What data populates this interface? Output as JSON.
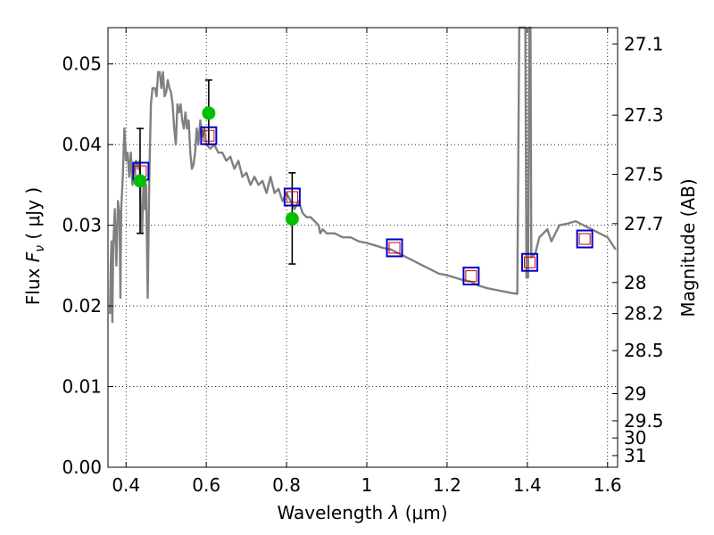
{
  "chart_data": {
    "type": "line",
    "xlabel": "Wavelength  λ (μm)",
    "xlabel_parts": {
      "text": "Wavelength  ",
      "symbol": "λ",
      "units": "(μm)"
    },
    "ylabel": "Flux  F_ν  ( μJy )",
    "ylabel_parts": {
      "text": "Flux  ",
      "symbol": "F",
      "subscript": "ν",
      "units": "( μJy )"
    },
    "ylabel_right": "Magnitude (AB)",
    "xlim": [
      0.355,
      1.625
    ],
    "ylim": [
      0.0,
      0.0545
    ],
    "x_ticks": [
      0.4,
      0.6,
      0.8,
      1.0,
      1.2,
      1.4,
      1.6
    ],
    "x_tick_labels": [
      "0.4",
      "0.6",
      "0.8",
      "1",
      "1.2",
      "1.4",
      "1.6"
    ],
    "y_ticks": [
      0.0,
      0.01,
      0.02,
      0.03,
      0.04,
      0.05
    ],
    "y_tick_labels": [
      "0.00",
      "0.01",
      "0.02",
      "0.03",
      "0.04",
      "0.05"
    ],
    "right_ticks": [
      {
        "label": "27.1",
        "mag": 27.1
      },
      {
        "label": "27.3",
        "mag": 27.3
      },
      {
        "label": "27.5",
        "mag": 27.5
      },
      {
        "label": "27.7",
        "mag": 27.7
      },
      {
        "label": "28",
        "mag": 28.0
      },
      {
        "label": "28.2",
        "mag": 28.2
      },
      {
        "label": "28.5",
        "mag": 28.5
      },
      {
        "label": "29",
        "mag": 29.0
      },
      {
        "label": "29.5",
        "mag": 29.5
      },
      {
        "label": "30",
        "mag": 30.0
      },
      {
        "label": "31",
        "mag": 31.0
      }
    ],
    "grid": true,
    "colors": {
      "spectrum": "#808080",
      "observed": "#00c000",
      "model_box": "#0000cc",
      "model_inner": "#cc0000",
      "errorbar": "#000000"
    },
    "spectrum": [
      [
        0.36,
        0.019
      ],
      [
        0.362,
        0.025
      ],
      [
        0.364,
        0.028
      ],
      [
        0.366,
        0.018
      ],
      [
        0.368,
        0.027
      ],
      [
        0.372,
        0.032
      ],
      [
        0.376,
        0.025
      ],
      [
        0.38,
        0.033
      ],
      [
        0.384,
        0.031
      ],
      [
        0.386,
        0.021
      ],
      [
        0.388,
        0.032
      ],
      [
        0.392,
        0.036
      ],
      [
        0.396,
        0.042
      ],
      [
        0.4,
        0.038
      ],
      [
        0.404,
        0.039
      ],
      [
        0.408,
        0.036
      ],
      [
        0.412,
        0.039
      ],
      [
        0.416,
        0.035
      ],
      [
        0.42,
        0.037
      ],
      [
        0.425,
        0.038
      ],
      [
        0.43,
        0.037
      ],
      [
        0.434,
        0.038
      ],
      [
        0.437,
        0.031
      ],
      [
        0.44,
        0.029
      ],
      [
        0.444,
        0.036
      ],
      [
        0.447,
        0.032
      ],
      [
        0.45,
        0.035
      ],
      [
        0.454,
        0.021
      ],
      [
        0.458,
        0.036
      ],
      [
        0.462,
        0.045
      ],
      [
        0.466,
        0.047
      ],
      [
        0.472,
        0.047
      ],
      [
        0.476,
        0.046
      ],
      [
        0.48,
        0.049
      ],
      [
        0.484,
        0.049
      ],
      [
        0.488,
        0.047
      ],
      [
        0.492,
        0.049
      ],
      [
        0.496,
        0.046
      ],
      [
        0.5,
        0.0465
      ],
      [
        0.504,
        0.048
      ],
      [
        0.508,
        0.047
      ],
      [
        0.512,
        0.0465
      ],
      [
        0.516,
        0.045
      ],
      [
        0.52,
        0.042
      ],
      [
        0.524,
        0.04
      ],
      [
        0.528,
        0.045
      ],
      [
        0.532,
        0.044
      ],
      [
        0.536,
        0.045
      ],
      [
        0.54,
        0.043
      ],
      [
        0.544,
        0.042
      ],
      [
        0.548,
        0.044
      ],
      [
        0.552,
        0.042
      ],
      [
        0.556,
        0.043
      ],
      [
        0.56,
        0.039
      ],
      [
        0.564,
        0.037
      ],
      [
        0.568,
        0.0375
      ],
      [
        0.572,
        0.039
      ],
      [
        0.576,
        0.042
      ],
      [
        0.58,
        0.04
      ],
      [
        0.585,
        0.043
      ],
      [
        0.59,
        0.041
      ],
      [
        0.595,
        0.042
      ],
      [
        0.6,
        0.04
      ],
      [
        0.61,
        0.0395
      ],
      [
        0.62,
        0.04
      ],
      [
        0.63,
        0.039
      ],
      [
        0.64,
        0.039
      ],
      [
        0.65,
        0.038
      ],
      [
        0.66,
        0.0385
      ],
      [
        0.67,
        0.037
      ],
      [
        0.68,
        0.038
      ],
      [
        0.69,
        0.036
      ],
      [
        0.7,
        0.0365
      ],
      [
        0.71,
        0.035
      ],
      [
        0.72,
        0.036
      ],
      [
        0.73,
        0.035
      ],
      [
        0.74,
        0.0355
      ],
      [
        0.75,
        0.034
      ],
      [
        0.76,
        0.036
      ],
      [
        0.77,
        0.034
      ],
      [
        0.78,
        0.0345
      ],
      [
        0.79,
        0.033
      ],
      [
        0.8,
        0.034
      ],
      [
        0.81,
        0.033
      ],
      [
        0.82,
        0.032
      ],
      [
        0.83,
        0.033
      ],
      [
        0.84,
        0.0315
      ],
      [
        0.85,
        0.031
      ],
      [
        0.86,
        0.031
      ],
      [
        0.87,
        0.0305
      ],
      [
        0.88,
        0.03
      ],
      [
        0.884,
        0.029
      ],
      [
        0.89,
        0.0295
      ],
      [
        0.9,
        0.029
      ],
      [
        0.92,
        0.029
      ],
      [
        0.94,
        0.0285
      ],
      [
        0.96,
        0.0285
      ],
      [
        0.98,
        0.028
      ],
      [
        1.0,
        0.0278
      ],
      [
        1.02,
        0.0275
      ],
      [
        1.04,
        0.0272
      ],
      [
        1.06,
        0.027
      ],
      [
        1.08,
        0.0265
      ],
      [
        1.1,
        0.026
      ],
      [
        1.12,
        0.0255
      ],
      [
        1.14,
        0.025
      ],
      [
        1.16,
        0.0245
      ],
      [
        1.18,
        0.024
      ],
      [
        1.2,
        0.0238
      ],
      [
        1.22,
        0.0235
      ],
      [
        1.24,
        0.0232
      ],
      [
        1.26,
        0.023
      ],
      [
        1.28,
        0.0225
      ],
      [
        1.3,
        0.0222
      ],
      [
        1.32,
        0.022
      ],
      [
        1.34,
        0.0218
      ],
      [
        1.36,
        0.0216
      ],
      [
        1.375,
        0.0215
      ],
      [
        1.38,
        0.055
      ],
      [
        1.395,
        0.055
      ],
      [
        1.398,
        0.0235
      ],
      [
        1.402,
        0.0235
      ],
      [
        1.405,
        0.055
      ],
      [
        1.408,
        0.055
      ],
      [
        1.41,
        0.026
      ],
      [
        1.42,
        0.0265
      ],
      [
        1.43,
        0.0285
      ],
      [
        1.44,
        0.029
      ],
      [
        1.45,
        0.0295
      ],
      [
        1.46,
        0.028
      ],
      [
        1.47,
        0.029
      ],
      [
        1.48,
        0.03
      ],
      [
        1.5,
        0.0302
      ],
      [
        1.52,
        0.0305
      ],
      [
        1.54,
        0.03
      ],
      [
        1.56,
        0.0295
      ],
      [
        1.58,
        0.029
      ],
      [
        1.6,
        0.0285
      ],
      [
        1.62,
        0.027
      ]
    ],
    "model_points": [
      {
        "x": 0.437,
        "y": 0.0367
      },
      {
        "x": 0.606,
        "y": 0.0411
      },
      {
        "x": 0.814,
        "y": 0.0335
      },
      {
        "x": 1.069,
        "y": 0.0272
      },
      {
        "x": 1.26,
        "y": 0.0237
      },
      {
        "x": 1.406,
        "y": 0.0254
      },
      {
        "x": 1.543,
        "y": 0.0283
      }
    ],
    "observed_points": [
      {
        "x": 0.435,
        "y": 0.0355,
        "yerr_low": 0.029,
        "yerr_high": 0.042
      },
      {
        "x": 0.606,
        "y": 0.0439,
        "yerr_low": 0.04,
        "yerr_high": 0.048
      },
      {
        "x": 0.814,
        "y": 0.0308,
        "yerr_low": 0.0252,
        "yerr_high": 0.0365
      }
    ]
  }
}
